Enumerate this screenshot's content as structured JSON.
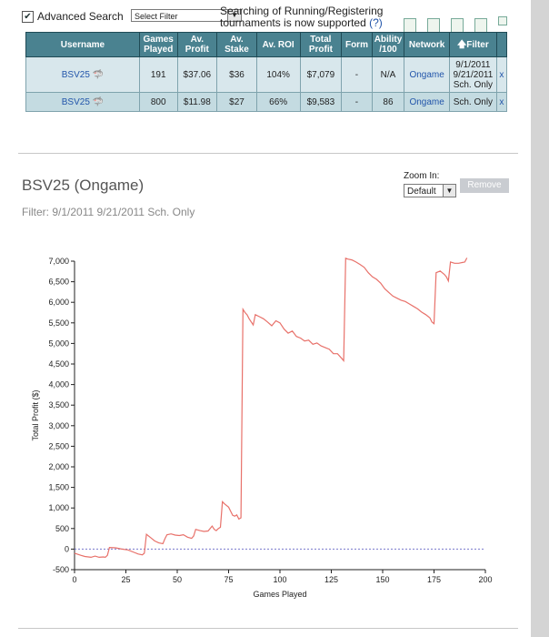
{
  "toolbar": {
    "advanced_search_label": "Advanced Search",
    "advanced_search_checked": true,
    "filter_select_value": "Select Filter",
    "notice_text": "Searching of Running/Registering tournaments is now supported",
    "notice_help": "(?)"
  },
  "results_table": {
    "headers": {
      "username": "Username",
      "games_played": "Games Played",
      "av_profit": "Av. Profit",
      "av_stake": "Av. Stake",
      "av_roi": "Av. ROI",
      "total_profit": "Total Profit",
      "form": "Form",
      "ability": "Ability /100",
      "network": "Network",
      "filter": "Filter"
    },
    "rows": [
      {
        "username": "BSV25",
        "games_played": "191",
        "av_profit": "$37.06",
        "av_stake": "$36",
        "av_roi": "104%",
        "total_profit": "$7,079",
        "form": "-",
        "ability": "N/A",
        "network": "Ongame",
        "filter": "9/1/2011 9/21/2011 Sch. Only",
        "remove": "x"
      },
      {
        "username": "BSV25",
        "games_played": "800",
        "av_profit": "$11.98",
        "av_stake": "$27",
        "av_roi": "66%",
        "total_profit": "$9,583",
        "form": "-",
        "ability": "86",
        "network": "Ongame",
        "filter": "Sch. Only",
        "remove": "x"
      }
    ]
  },
  "graph_panel": {
    "title": "BSV25 (Ongame)",
    "filter_text": "Filter: 9/1/2011 9/21/2011 Sch. Only",
    "zoom_label": "Zoom In:",
    "zoom_value": "Default",
    "remove_label": "Remove"
  },
  "chart_data": {
    "type": "line",
    "xlabel": "Games Played",
    "ylabel": "Total Profit ($)",
    "xlim": [
      0,
      200
    ],
    "ylim": [
      -500,
      7000
    ],
    "xticks": [
      0,
      25,
      50,
      75,
      100,
      125,
      150,
      175,
      200
    ],
    "yticks": [
      -500,
      0,
      500,
      1000,
      1500,
      2000,
      2500,
      3000,
      3500,
      4000,
      4500,
      5000,
      5500,
      6000,
      6500,
      7000
    ],
    "line_color": "#e8716a",
    "zero_line_color": "#7777cc",
    "series": [
      {
        "x": [
          0,
          3,
          5,
          8,
          10,
          12,
          14,
          15,
          16,
          17,
          20,
          23,
          26,
          29,
          31,
          33,
          34,
          35,
          37,
          39,
          41,
          43,
          44,
          45,
          47,
          49,
          51,
          53,
          55,
          57,
          58,
          59,
          61,
          63,
          65,
          67,
          68,
          69,
          70,
          71,
          72,
          73,
          75,
          77,
          78,
          79,
          80,
          81,
          82,
          83,
          84,
          85,
          87,
          88,
          90,
          92,
          94,
          96,
          98,
          100,
          102,
          104,
          106,
          108,
          110,
          112,
          114,
          116,
          118,
          120,
          122,
          124,
          126,
          128,
          130,
          131,
          132,
          133,
          135,
          137,
          139,
          141,
          143,
          145,
          147,
          149,
          151,
          153,
          155,
          157,
          159,
          161,
          163,
          165,
          167,
          169,
          171,
          173,
          174,
          175,
          176,
          178,
          180,
          181,
          182,
          183,
          185,
          187,
          189,
          190,
          191
        ],
        "y": [
          -100,
          -150,
          -180,
          -200,
          -170,
          -200,
          -190,
          -200,
          -150,
          40,
          30,
          0,
          -20,
          -80,
          -120,
          -140,
          -100,
          360,
          280,
          200,
          150,
          130,
          250,
          350,
          370,
          340,
          330,
          350,
          290,
          260,
          320,
          480,
          450,
          430,
          440,
          560,
          480,
          450,
          500,
          530,
          1150,
          1100,
          1020,
          820,
          800,
          830,
          730,
          760,
          5830,
          5750,
          5700,
          5600,
          5450,
          5700,
          5650,
          5600,
          5520,
          5430,
          5550,
          5500,
          5350,
          5250,
          5300,
          5170,
          5130,
          5060,
          5080,
          4980,
          5010,
          4940,
          4900,
          4860,
          4750,
          4750,
          4640,
          4580,
          7070,
          7050,
          7030,
          6980,
          6920,
          6850,
          6720,
          6620,
          6560,
          6470,
          6330,
          6240,
          6150,
          6100,
          6050,
          6020,
          5960,
          5900,
          5840,
          5760,
          5700,
          5620,
          5520,
          5480,
          6720,
          6760,
          6680,
          6620,
          6520,
          6980,
          6950,
          6950,
          6970,
          6980,
          7079
        ]
      }
    ]
  }
}
